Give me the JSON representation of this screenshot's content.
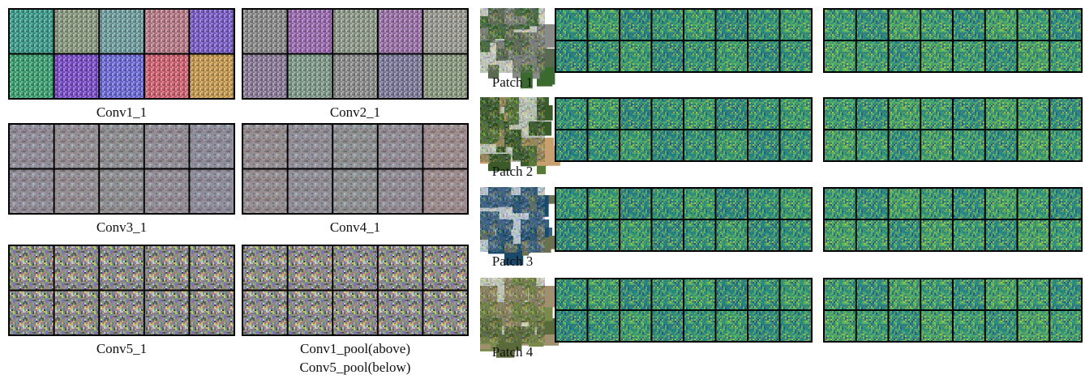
{
  "left_panels": [
    {
      "label": "Conv1_1"
    },
    {
      "label": "Conv2_1"
    },
    {
      "label": "Conv3_1"
    },
    {
      "label": "Conv4_1"
    },
    {
      "label": "Conv5_1"
    },
    {
      "labels": [
        "Conv1_pool(above)",
        "Conv5_pool(below)"
      ]
    }
  ],
  "patches": [
    {
      "label": "Patch 1"
    },
    {
      "label": "Patch 2"
    },
    {
      "label": "Patch 3"
    },
    {
      "label": "Patch 4"
    }
  ]
}
